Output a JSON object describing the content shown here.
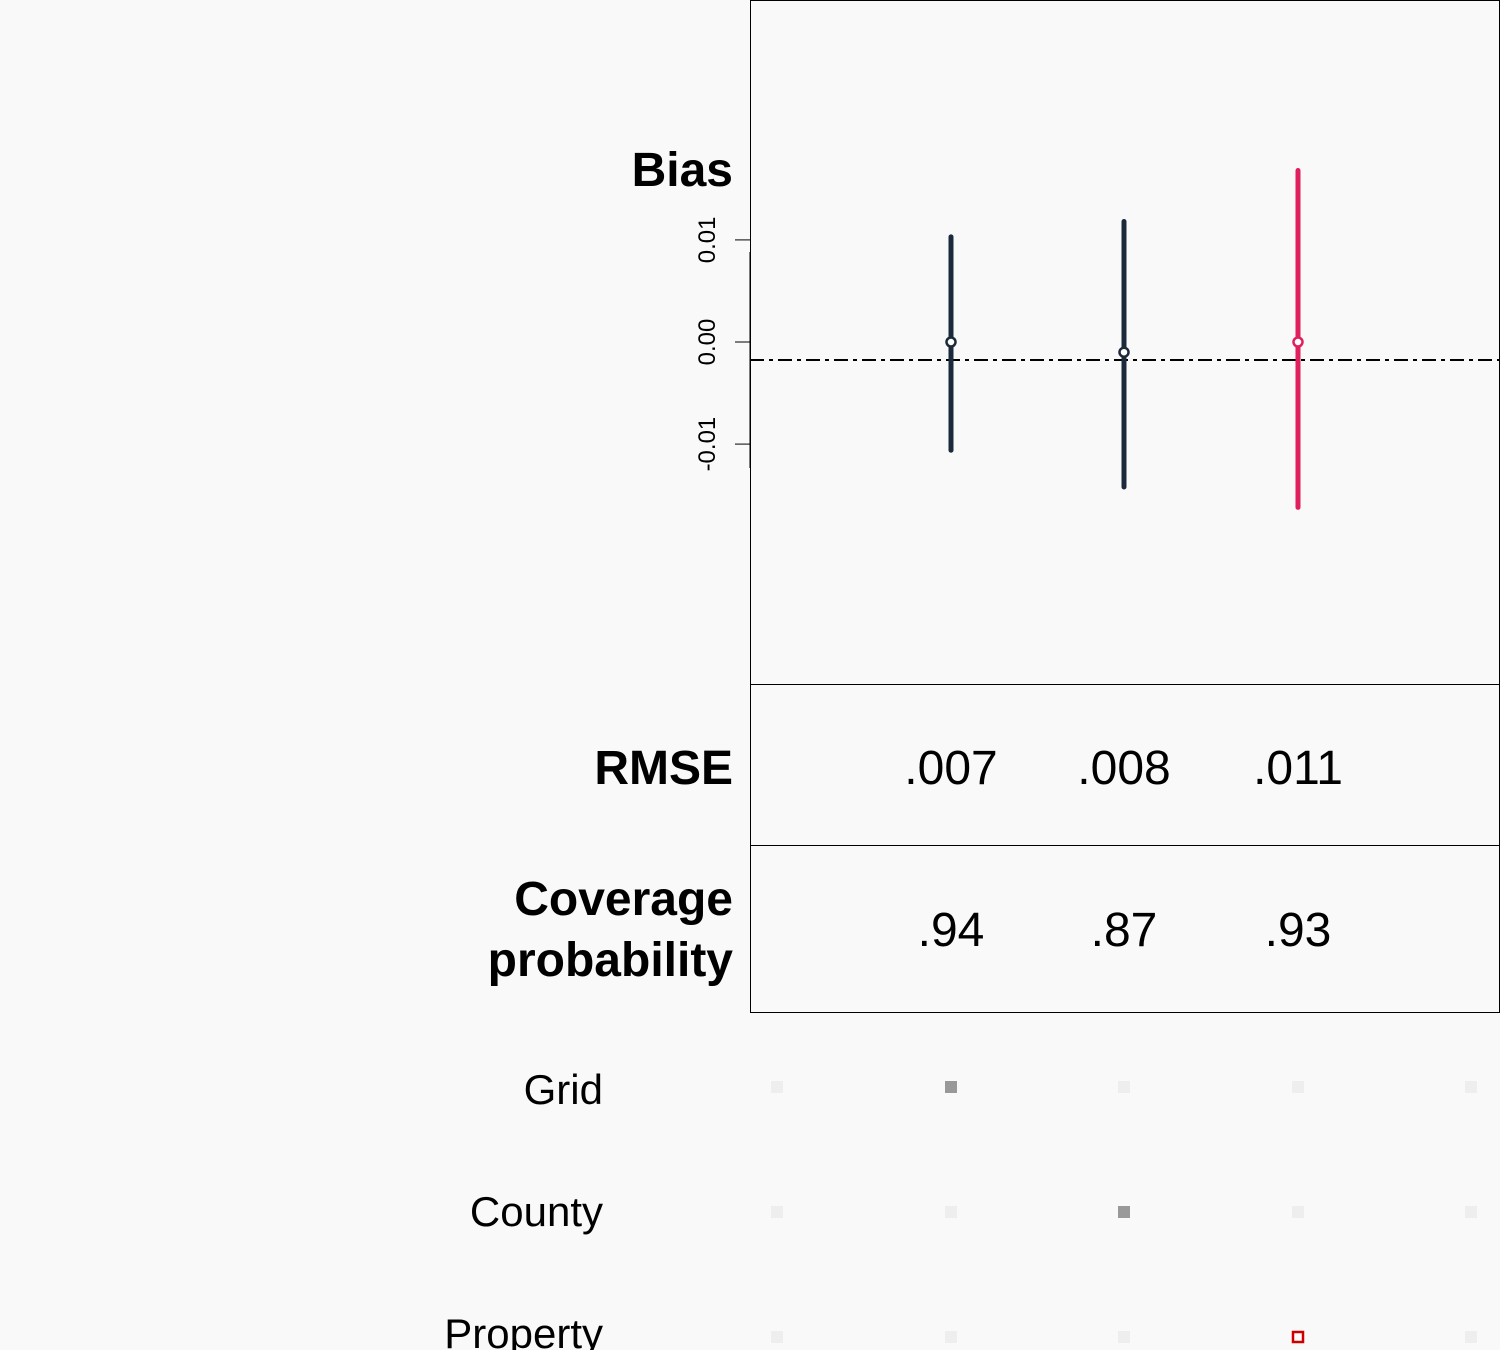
{
  "chart_data": {
    "type": "scatter",
    "panels": {
      "bias": {
        "title": "Bias",
        "yticks": [
          "-0.01",
          "0.00",
          "0.01"
        ],
        "ytick_values": [
          -0.01,
          0.0,
          0.01
        ],
        "ylim": [
          -0.0335,
          0.0335
        ],
        "reference_line": 0,
        "series": [
          {
            "column": 1,
            "estimate": 0.0,
            "lower": -0.0106,
            "upper": 0.0103,
            "color": "#1b2a3a"
          },
          {
            "column": 2,
            "estimate": -0.001,
            "lower": -0.0142,
            "upper": 0.0118,
            "color": "#1b2a3a"
          },
          {
            "column": 3,
            "estimate": 0.0,
            "lower": -0.0162,
            "upper": 0.0168,
            "color": "#e0205e"
          }
        ]
      },
      "rmse": {
        "title": "RMSE",
        "values": [
          ".007",
          ".008",
          ".011"
        ]
      },
      "coverage": {
        "title_line1": "Coverage",
        "title_line2": "probability",
        "values": [
          ".94",
          ".87",
          ".93"
        ]
      }
    },
    "indicator_rows": [
      {
        "label": "Grid",
        "selected": [
          false,
          true,
          false,
          false,
          false
        ]
      },
      {
        "label": "County",
        "selected": [
          false,
          false,
          true,
          false,
          false
        ]
      },
      {
        "label": "Property",
        "selected": [
          false,
          false,
          false,
          true,
          false
        ],
        "highlight": true
      }
    ],
    "colors": {
      "default_mark": "#1b2a3a",
      "highlight_mark": "#e0205e",
      "indicator_on": "#999999",
      "indicator_off": "#eeeeee",
      "indicator_highlight": "#cc0000"
    }
  }
}
